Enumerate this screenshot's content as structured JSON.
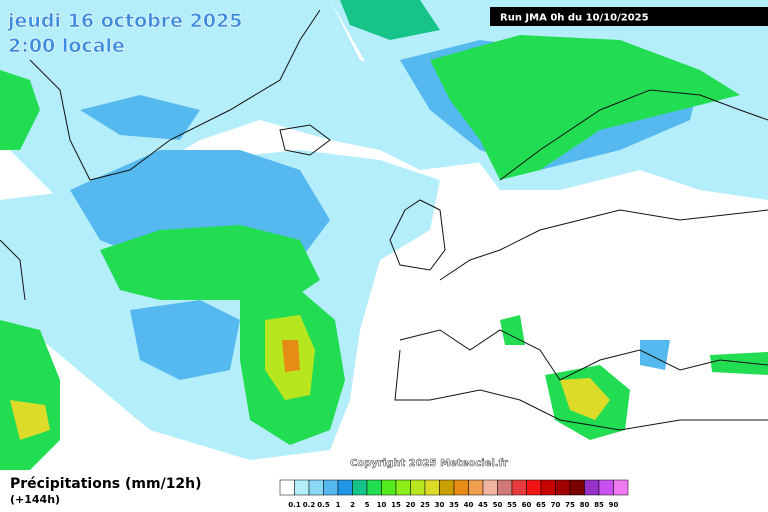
{
  "header": {
    "title": "jeudi 16 octobre 2025",
    "subtitle": "2:00 locale",
    "run": "Run JMA 0h du 10/10/2025"
  },
  "copyright": "Copyright 2025 Meteociel.fr",
  "legend": {
    "title": "Précipitations (mm/12h)",
    "lead": "(+144h)",
    "entries": [
      {
        "label": "0.1",
        "color": "#b4eefa"
      },
      {
        "label": "0.2",
        "color": "#8ad8f6"
      },
      {
        "label": "0.5",
        "color": "#55b9f0"
      },
      {
        "label": "1",
        "color": "#2196e6"
      },
      {
        "label": "2",
        "color": "#16c48a"
      },
      {
        "label": "5",
        "color": "#22dc52"
      },
      {
        "label": "10",
        "color": "#55ec1e"
      },
      {
        "label": "15",
        "color": "#8cee1a"
      },
      {
        "label": "20",
        "color": "#b8e61e"
      },
      {
        "label": "25",
        "color": "#dcdc28"
      },
      {
        "label": "30",
        "color": "#c8a000"
      },
      {
        "label": "35",
        "color": "#e68c14"
      },
      {
        "label": "40",
        "color": "#f0a050"
      },
      {
        "label": "45",
        "color": "#f0b4a0"
      },
      {
        "label": "50",
        "color": "#d27878"
      },
      {
        "label": "55",
        "color": "#e63c3c"
      },
      {
        "label": "60",
        "color": "#f01414"
      },
      {
        "label": "65",
        "color": "#c80000"
      },
      {
        "label": "70",
        "color": "#a00000"
      },
      {
        "label": "75",
        "color": "#780000"
      },
      {
        "label": "80",
        "color": "#9632c8"
      },
      {
        "label": "85",
        "color": "#c850f0"
      },
      {
        "label": "90",
        "color": "#f078f0"
      }
    ]
  }
}
